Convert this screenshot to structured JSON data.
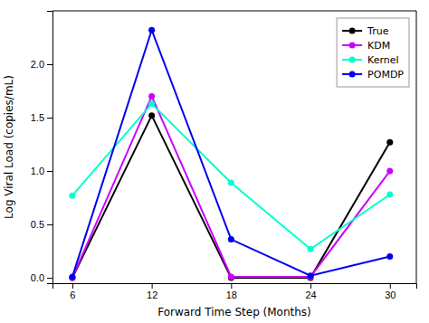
{
  "chart_data": {
    "type": "line",
    "x": [
      6,
      12,
      18,
      24,
      30
    ],
    "series": [
      {
        "name": "True",
        "color": "#000000",
        "values": [
          0.0,
          1.52,
          0.0,
          0.0,
          1.27
        ]
      },
      {
        "name": "KDM",
        "color": "#cc00ff",
        "values": [
          0.0,
          1.7,
          0.01,
          0.01,
          1.0
        ]
      },
      {
        "name": "Kernel",
        "color": "#00ffcc",
        "values": [
          0.77,
          1.63,
          0.89,
          0.27,
          0.78
        ]
      },
      {
        "name": "POMDP",
        "color": "#0000ee",
        "values": [
          0.01,
          2.32,
          0.36,
          0.02,
          0.2
        ]
      }
    ],
    "xlabel": "Forward Time Step (Months)",
    "ylabel": "Log Viral Load (copies/mL)",
    "xlim": [
      4.5,
      32
    ],
    "ylim": [
      -0.05,
      2.5
    ],
    "xticks": [
      6,
      12,
      18,
      24,
      30
    ],
    "yticks": [
      {
        "value": 0.0,
        "label": "0.0"
      },
      0.5,
      {
        "value": 1.0,
        "label": "1.0"
      },
      1.5,
      {
        "value": 2.0,
        "label": "2.0"
      }
    ],
    "marker": "circle",
    "grid": false,
    "legend": "upper right"
  }
}
